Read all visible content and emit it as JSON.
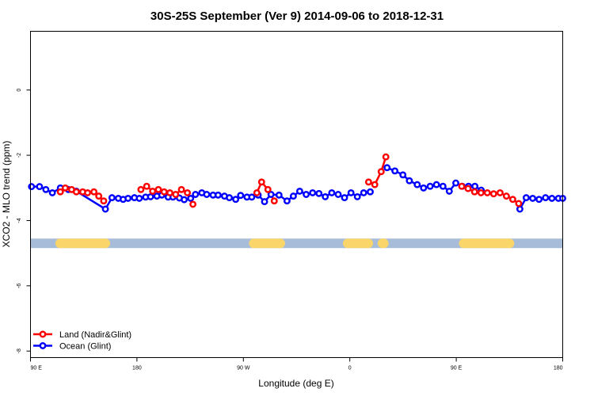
{
  "chart_data": {
    "type": "line",
    "title": "30S-25S September (Ver 9)   2014-09-06 to 2018-12-31",
    "xlabel": "Longitude (deg E)",
    "ylabel": "XCO2 - MLO trend (ppm)",
    "xlim": [
      90,
      450
    ],
    "ylim": [
      -8.2,
      1.8
    ],
    "x_ticks": [
      {
        "value": 90,
        "label": "90 E"
      },
      {
        "value": 162,
        "label": "180"
      },
      {
        "value": 234,
        "label": "90 W"
      },
      {
        "value": 306,
        "label": "0"
      },
      {
        "value": 378,
        "label": "90 E"
      },
      {
        "value": 450,
        "label": "180"
      }
    ],
    "y_ticks": [
      {
        "value": 0,
        "label": "0"
      },
      {
        "value": -2,
        "label": "-2"
      },
      {
        "value": -4,
        "label": "-4"
      },
      {
        "value": -6,
        "label": "-6"
      },
      {
        "value": -8,
        "label": "-8"
      }
    ],
    "legend": {
      "position": "bottom-left",
      "entries": [
        {
          "name": "Land (Nadir&Glint)",
          "color": "#ff0000"
        },
        {
          "name": "Ocean (Glint)",
          "color": "#0000ff"
        }
      ]
    },
    "surface_band": {
      "y": -4.7,
      "ocean_color": "#a7bcd9",
      "land_color": "#f9d56a",
      "land_ranges": [
        [
          110,
          140.7
        ],
        [
          241,
          259
        ],
        [
          304.5,
          318.5
        ],
        [
          328,
          329
        ],
        [
          383,
          414
        ]
      ]
    },
    "series": [
      {
        "name": "Ocean (Glint)",
        "color": "#0000ff",
        "x": [
          90.7,
          96.1,
          100.4,
          104.8,
          110.2,
          115.6,
          121.0,
          140.7,
          145.1,
          149.4,
          152.7,
          156.0,
          160.3,
          163.6,
          167.9,
          171.2,
          175.5,
          178.8,
          183.1,
          186.4,
          190.7,
          194.0,
          198.3,
          201.6,
          205.9,
          209.2,
          213.5,
          216.9,
          221.2,
          224.5,
          228.8,
          232.1,
          236.4,
          239.7,
          244.0,
          248.3,
          252.7,
          258.1,
          263.5,
          267.8,
          272.1,
          276.5,
          280.8,
          285.1,
          289.4,
          293.8,
          298.1,
          302.4,
          306.8,
          311.1,
          315.4,
          319.8,
          331.2,
          336.5,
          341.9,
          346.3,
          351.6,
          355.9,
          360.3,
          364.6,
          369.0,
          373.3,
          377.7,
          382.0,
          386.3,
          390.6,
          394.9,
          421.0,
          425.3,
          429.7,
          434.0,
          438.4,
          442.7,
          447.1,
          450.0
        ],
        "y": [
          -2.96,
          -2.96,
          -3.05,
          -3.15,
          -3.0,
          -3.05,
          -3.1,
          -3.65,
          -3.3,
          -3.32,
          -3.35,
          -3.32,
          -3.3,
          -3.32,
          -3.28,
          -3.27,
          -3.25,
          -3.22,
          -3.28,
          -3.28,
          -3.31,
          -3.36,
          -3.32,
          -3.2,
          -3.15,
          -3.2,
          -3.22,
          -3.22,
          -3.25,
          -3.3,
          -3.35,
          -3.23,
          -3.28,
          -3.28,
          -3.22,
          -3.42,
          -3.2,
          -3.22,
          -3.4,
          -3.25,
          -3.1,
          -3.2,
          -3.15,
          -3.17,
          -3.27,
          -3.15,
          -3.2,
          -3.3,
          -3.15,
          -3.27,
          -3.15,
          -3.12,
          -2.38,
          -2.48,
          -2.6,
          -2.78,
          -2.9,
          -3.0,
          -2.95,
          -2.9,
          -2.95,
          -3.1,
          -2.85,
          -2.95,
          -2.95,
          -2.95,
          -3.07,
          -3.65,
          -3.3,
          -3.32,
          -3.35,
          -3.3,
          -3.32,
          -3.32,
          -3.32
        ]
      },
      {
        "name": "Land (Nadir&Glint)",
        "color": "#ff0000",
        "x": [
          110.2,
          113.5,
          117.8,
          121.0,
          125.3,
          128.6,
          132.9,
          136.2,
          139.5,
          164.7,
          168.6,
          172.6,
          176.5,
          180.4,
          184.3,
          188.2,
          192.1,
          196.1,
          199.9,
          243.1,
          246.3,
          250.6,
          254.9,
          318.7,
          322.9,
          327.2,
          330.4,
          381.7,
          386.0,
          390.4,
          394.7,
          399.0,
          403.3,
          407.6,
          411.9,
          416.2,
          420.2
        ],
        "y": [
          -3.12,
          -3.0,
          -3.05,
          -3.12,
          -3.12,
          -3.15,
          -3.12,
          -3.25,
          -3.4,
          -3.05,
          -2.95,
          -3.1,
          -3.05,
          -3.12,
          -3.15,
          -3.2,
          -3.05,
          -3.15,
          -3.5,
          -3.15,
          -2.82,
          -3.05,
          -3.4,
          -2.82,
          -2.9,
          -2.5,
          -2.05,
          -2.95,
          -3.02,
          -3.12,
          -3.15,
          -3.15,
          -3.18,
          -3.15,
          -3.25,
          -3.35,
          -3.48
        ]
      }
    ]
  }
}
